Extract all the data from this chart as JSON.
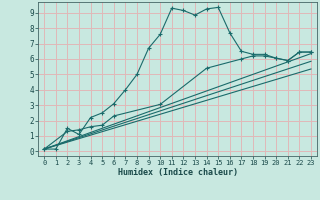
{
  "xlabel": "Humidex (Indice chaleur)",
  "xlim": [
    -0.5,
    23.5
  ],
  "ylim": [
    -0.3,
    9.7
  ],
  "xticks": [
    0,
    1,
    2,
    3,
    4,
    5,
    6,
    7,
    8,
    9,
    10,
    11,
    12,
    13,
    14,
    15,
    16,
    17,
    18,
    19,
    20,
    21,
    22,
    23
  ],
  "yticks": [
    0,
    1,
    2,
    3,
    4,
    5,
    6,
    7,
    8,
    9
  ],
  "bg_color": "#c8e8e0",
  "grid_color": "#e0b8b8",
  "line_color": "#1a6b6b",
  "line1_x": [
    0,
    1,
    2,
    3,
    4,
    5,
    6,
    7,
    8,
    9,
    10,
    11,
    12,
    13,
    14,
    15,
    16,
    17,
    18,
    19,
    20,
    21,
    22,
    23
  ],
  "line1_y": [
    0.15,
    0.15,
    1.5,
    1.1,
    2.2,
    2.5,
    3.1,
    4.0,
    5.0,
    6.7,
    7.6,
    9.3,
    9.15,
    8.85,
    9.25,
    9.35,
    7.7,
    6.5,
    6.3,
    6.3,
    6.05,
    5.9,
    6.45,
    6.45
  ],
  "line2_x": [
    0,
    2,
    3,
    4,
    5,
    6,
    10,
    14,
    17,
    18,
    19,
    20,
    21,
    22,
    23
  ],
  "line2_y": [
    0.15,
    1.3,
    1.4,
    1.6,
    1.7,
    2.3,
    3.05,
    5.4,
    6.0,
    6.2,
    6.2,
    6.05,
    5.9,
    6.45,
    6.45
  ],
  "line3_x": [
    0,
    23
  ],
  "line3_y": [
    0.15,
    6.35
  ],
  "line4_x": [
    0,
    23
  ],
  "line4_y": [
    0.15,
    5.85
  ],
  "line5_x": [
    0,
    23
  ],
  "line5_y": [
    0.15,
    5.35
  ]
}
